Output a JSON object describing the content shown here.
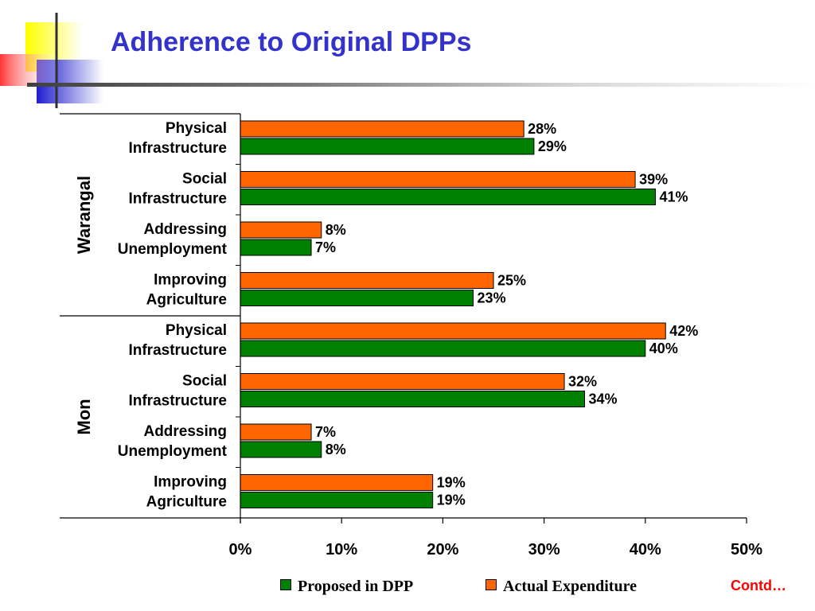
{
  "slide": {
    "title": "Adherence to Original DPPs",
    "contd": "Contd…"
  },
  "colors": {
    "title": "#3333cc",
    "proposed": "#008000",
    "actual": "#ff6600",
    "contd": "#ff0000"
  },
  "chart_data": {
    "type": "bar",
    "orientation": "horizontal",
    "groups": [
      {
        "name": "Warangal",
        "categories": [
          [
            "Physical",
            "Infrastructure"
          ],
          [
            "Social",
            "Infrastructure"
          ],
          [
            "Addressing",
            "Unemployment"
          ],
          [
            "Improving",
            "Agriculture"
          ]
        ],
        "actual": [
          28,
          39,
          8,
          25
        ],
        "proposed": [
          29,
          41,
          7,
          23
        ]
      },
      {
        "name": "Mon",
        "categories": [
          [
            "Physical",
            "Infrastructure"
          ],
          [
            "Social",
            "Infrastructure"
          ],
          [
            "Addressing",
            "Unemployment"
          ],
          [
            "Improving",
            "Agriculture"
          ]
        ],
        "actual": [
          42,
          32,
          7,
          19
        ],
        "proposed": [
          40,
          34,
          8,
          19
        ]
      }
    ],
    "series": [
      {
        "key": "proposed",
        "name": "Proposed in DPP",
        "color": "#008000"
      },
      {
        "key": "actual",
        "name": "Actual Expenditure",
        "color": "#ff6600"
      }
    ],
    "xlim": [
      0,
      50
    ],
    "xticks": [
      "0%",
      "10%",
      "20%",
      "30%",
      "40%",
      "50%"
    ],
    "xtick_values": [
      0,
      10,
      20,
      30,
      40,
      50
    ],
    "value_suffix": "%",
    "grid": false,
    "legend": "bottom"
  }
}
